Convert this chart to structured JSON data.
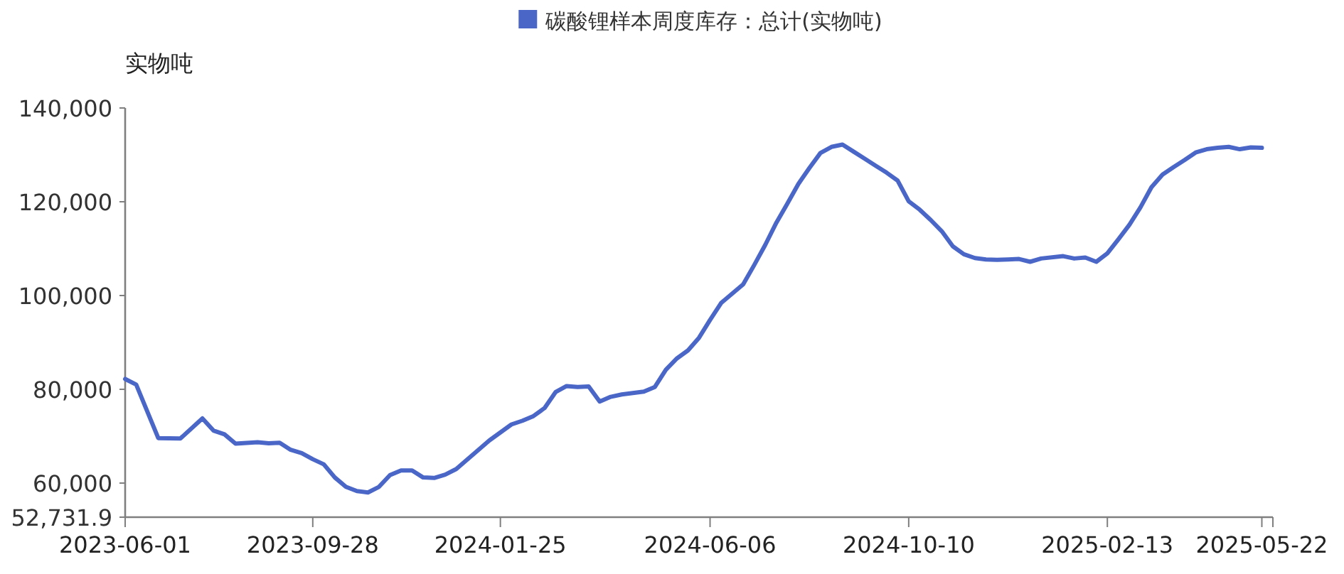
{
  "chart_data": {
    "type": "line",
    "ylabel": "实物吨",
    "legend": "top",
    "marker": "none",
    "line_style": "solid",
    "series": [
      {
        "name": "碳酸锂样本周度库存：总计(实物吨)",
        "color": "#4a67c8",
        "x": [
          "2023-06-01",
          "2023-06-08",
          "2023-06-22",
          "2023-07-06",
          "2023-07-20",
          "2023-07-27",
          "2023-08-03",
          "2023-08-10",
          "2023-08-24",
          "2023-08-31",
          "2023-09-07",
          "2023-09-14",
          "2023-09-21",
          "2023-09-28",
          "2023-10-05",
          "2023-10-12",
          "2023-10-19",
          "2023-10-26",
          "2023-11-02",
          "2023-11-09",
          "2023-11-16",
          "2023-11-23",
          "2023-11-30",
          "2023-12-07",
          "2023-12-14",
          "2023-12-21",
          "2023-12-28",
          "2024-01-18",
          "2024-02-01",
          "2024-02-08",
          "2024-02-15",
          "2024-02-22",
          "2024-02-29",
          "2024-03-07",
          "2024-03-14",
          "2024-03-21",
          "2024-03-28",
          "2024-04-04",
          "2024-04-11",
          "2024-04-18",
          "2024-04-25",
          "2024-05-02",
          "2024-05-09",
          "2024-05-16",
          "2024-05-23",
          "2024-05-30",
          "2024-06-06",
          "2024-06-13",
          "2024-06-27",
          "2024-07-04",
          "2024-07-11",
          "2024-07-18",
          "2024-07-25",
          "2024-08-01",
          "2024-08-08",
          "2024-08-15",
          "2024-08-22",
          "2024-08-29",
          "2024-09-05",
          "2024-09-12",
          "2024-09-19",
          "2024-09-26",
          "2024-10-03",
          "2024-10-10",
          "2024-10-17",
          "2024-10-24",
          "2024-10-31",
          "2024-11-07",
          "2024-11-14",
          "2024-11-21",
          "2024-11-28",
          "2024-12-05",
          "2024-12-12",
          "2024-12-19",
          "2024-12-26",
          "2025-01-02",
          "2025-01-16",
          "2025-01-23",
          "2025-01-30",
          "2025-02-06",
          "2025-02-13",
          "2025-02-20",
          "2025-02-27",
          "2025-03-06",
          "2025-03-13",
          "2025-03-20",
          "2025-03-27",
          "2025-04-03",
          "2025-04-10",
          "2025-04-17",
          "2025-04-24",
          "2025-05-01",
          "2025-05-08",
          "2025-05-15",
          "2025-05-22"
        ],
        "values": [
          82200,
          81000,
          69600,
          69500,
          73800,
          71200,
          70400,
          68400,
          68700,
          68500,
          68600,
          67100,
          66400,
          65100,
          64000,
          61200,
          59200,
          58300,
          58000,
          59200,
          61700,
          62700,
          62700,
          61200,
          61100,
          61800,
          63000,
          69100,
          72500,
          73300,
          74300,
          76000,
          79400,
          80700,
          80500,
          80600,
          77400,
          78400,
          78900,
          79200,
          79500,
          80500,
          84200,
          86600,
          88300,
          91000,
          94800,
          98400,
          102400,
          106500,
          110800,
          115500,
          119600,
          123800,
          127200,
          130400,
          131700,
          132200,
          130700,
          129200,
          127700,
          126200,
          124500,
          120100,
          118300,
          116100,
          113700,
          110500,
          108800,
          108000,
          107700,
          107600,
          107700,
          107800,
          107200,
          107900,
          108400,
          107900,
          108100,
          107200,
          109000,
          112000,
          115100,
          118800,
          123100,
          125800,
          127400,
          128900,
          130500,
          131200,
          131500,
          131700,
          131200,
          131600,
          131500
        ]
      }
    ],
    "xlim": [
      "2023-06-01",
      "2025-05-29"
    ],
    "xticks": [
      "2023-06-01",
      "2023-09-28",
      "2024-01-25",
      "2024-06-06",
      "2024-10-10",
      "2025-02-13",
      "2025-05-22",
      {
        "value": "2025-05-29",
        "label": null
      }
    ],
    "ylim": [
      52731.9,
      140000
    ],
    "yticks": [
      {
        "value": 52731.9,
        "label": "52,731.9"
      },
      {
        "value": 60000,
        "label": "60,000"
      },
      {
        "value": 80000,
        "label": "80,000"
      },
      {
        "value": 100000,
        "label": "100,000"
      },
      {
        "value": 120000,
        "label": "120,000"
      },
      {
        "value": 140000,
        "label": "140,000"
      }
    ],
    "grid": false
  }
}
